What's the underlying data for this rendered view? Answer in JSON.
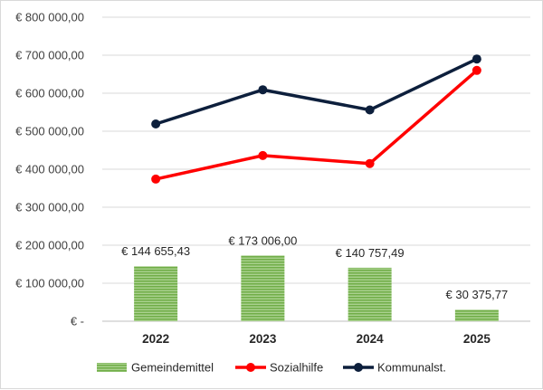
{
  "chart_data": {
    "type": "bar",
    "categories": [
      "2022",
      "2023",
      "2024",
      "2025"
    ],
    "ylim": [
      0,
      800000
    ],
    "y_ticks": [
      {
        "value": 0,
        "label": "€ -"
      },
      {
        "value": 100000,
        "label": "€ 100 000,00"
      },
      {
        "value": 200000,
        "label": "€ 200 000,00"
      },
      {
        "value": 300000,
        "label": "€ 300 000,00"
      },
      {
        "value": 400000,
        "label": "€ 400 000,00"
      },
      {
        "value": 500000,
        "label": "€ 500 000,00"
      },
      {
        "value": 600000,
        "label": "€ 600 000,00"
      },
      {
        "value": 700000,
        "label": "€ 700 000,00"
      },
      {
        "value": 800000,
        "label": "€ 800 000,00"
      }
    ],
    "grid": true,
    "legend_position": "bottom",
    "series": [
      {
        "name": "Gemeindemittel",
        "type": "bar",
        "color": "#70ad47",
        "values": [
          144655.43,
          173006.0,
          140757.49,
          30375.77
        ],
        "data_labels": [
          "€ 144 655,43",
          "€ 173 006,00",
          "€ 140 757,49",
          "€ 30 375,77"
        ]
      },
      {
        "name": "Sozialhilfe",
        "type": "line",
        "color": "#ff0000",
        "values": [
          374000,
          436000,
          415000,
          660000
        ]
      },
      {
        "name": "Kommunalst.",
        "type": "line",
        "color": "#0d1f3c",
        "values": [
          519000,
          609000,
          556000,
          690000
        ]
      }
    ]
  }
}
